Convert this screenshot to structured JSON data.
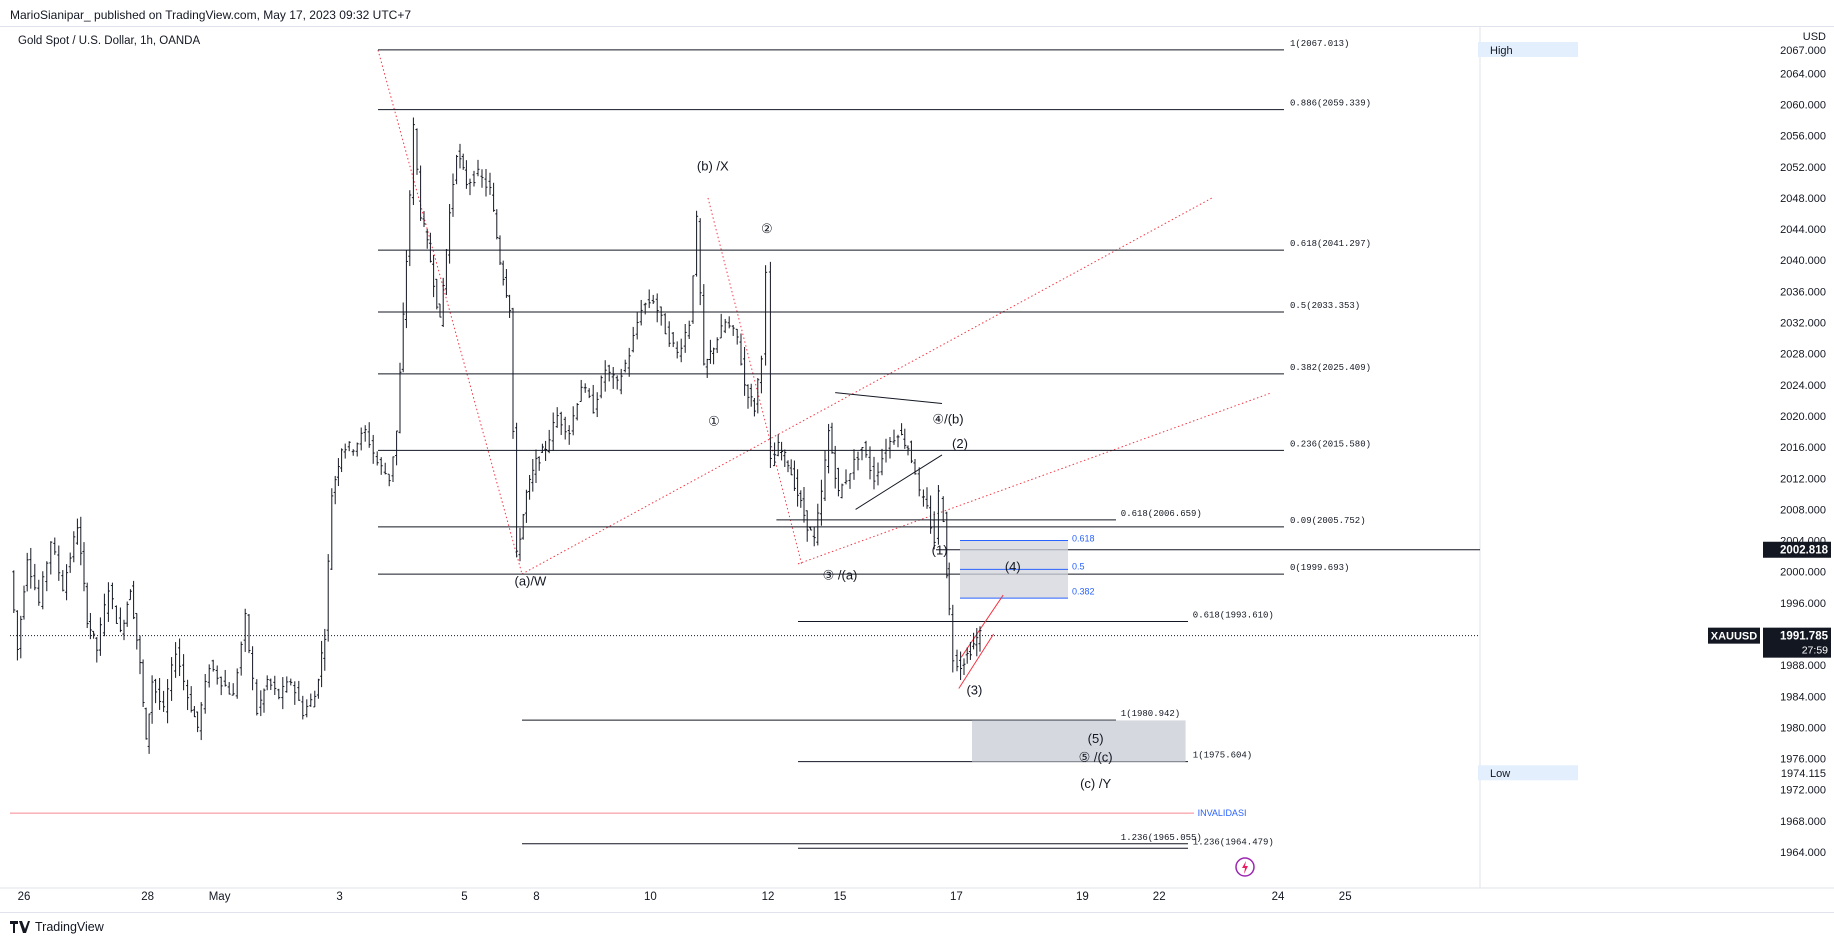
{
  "header": {
    "published": "MarioSianipar_ published on TradingView.com, May 17, 2023 09:32 UTC+7",
    "symbol": "Gold Spot / U.S. Dollar, 1h, OANDA"
  },
  "footer": {
    "brand": "TradingView"
  },
  "colors": {
    "bg": "#ffffff",
    "up": "#131722",
    "fib": "#131722",
    "dotted_red": "#f23645",
    "blue": "#2962ff",
    "zone": "#d1d4dc"
  },
  "chart_data": {
    "type": "candlestick",
    "currency": "USD",
    "ylim": [
      1960.5,
      2069.5
    ],
    "xlim": [
      0,
      1200
    ],
    "y_ticks": [
      1964,
      1968,
      1972,
      1976,
      1980,
      1984,
      1988,
      1992,
      1996,
      2000,
      2004,
      2008,
      2012,
      2016,
      2020,
      2024,
      2028,
      2032,
      2036,
      2040,
      2044,
      2048,
      2052,
      2056,
      2060,
      2064,
      2067
    ],
    "y_tick_labels": [
      "1964.000",
      "1968.000",
      "1972.000",
      "1976.000",
      "1980.000",
      "1984.000",
      "1988.000",
      "1992.000",
      "1996.000",
      "2000.000",
      "2004.000",
      "2008.000",
      "2012.000",
      "2016.000",
      "2020.000",
      "2024.000",
      "2028.000",
      "2032.000",
      "2036.000",
      "2040.000",
      "2044.000",
      "2048.000",
      "2052.000",
      "2056.000",
      "2060.000",
      "2064.000",
      "2067.000"
    ],
    "x_ticks": [
      {
        "t": 10,
        "label": "26"
      },
      {
        "t": 113,
        "label": "28"
      },
      {
        "t": 173,
        "label": "May"
      },
      {
        "t": 273,
        "label": "3"
      },
      {
        "t": 377,
        "label": "5"
      },
      {
        "t": 437,
        "label": "8"
      },
      {
        "t": 532,
        "label": "10"
      },
      {
        "t": 630,
        "label": "12"
      },
      {
        "t": 690,
        "label": "15"
      },
      {
        "t": 787,
        "label": "17"
      },
      {
        "t": 892,
        "label": "19"
      },
      {
        "t": 956,
        "label": "22"
      },
      {
        "t": 1055,
        "label": "24"
      },
      {
        "t": 1111,
        "label": "25"
      }
    ],
    "path": [
      [
        0,
        2000
      ],
      [
        6,
        1990
      ],
      [
        14,
        2002
      ],
      [
        24,
        1996
      ],
      [
        34,
        2004
      ],
      [
        44,
        1998
      ],
      [
        56,
        2006
      ],
      [
        64,
        1994
      ],
      [
        72,
        1990
      ],
      [
        82,
        1998
      ],
      [
        92,
        1992
      ],
      [
        100,
        1998
      ],
      [
        108,
        1988
      ],
      [
        113,
        1978
      ],
      [
        118,
        1986
      ],
      [
        128,
        1982
      ],
      [
        138,
        1990
      ],
      [
        148,
        1984
      ],
      [
        156,
        1980
      ],
      [
        166,
        1988
      ],
      [
        176,
        1986
      ],
      [
        186,
        1984
      ],
      [
        196,
        1994
      ],
      [
        202,
        1986
      ],
      [
        206,
        1982
      ],
      [
        214,
        1986
      ],
      [
        224,
        1984
      ],
      [
        234,
        1986
      ],
      [
        244,
        1982
      ],
      [
        254,
        1984
      ],
      [
        262,
        1992
      ],
      [
        268,
        2010
      ],
      [
        276,
        2016
      ],
      [
        286,
        2016
      ],
      [
        296,
        2018
      ],
      [
        306,
        2014
      ],
      [
        316,
        2012
      ],
      [
        322,
        2018
      ],
      [
        330,
        2040
      ],
      [
        336,
        2057
      ],
      [
        342,
        2046
      ],
      [
        350,
        2040
      ],
      [
        358,
        2032
      ],
      [
        366,
        2046
      ],
      [
        372,
        2054
      ],
      [
        380,
        2050
      ],
      [
        390,
        2051
      ],
      [
        400,
        2049
      ],
      [
        408,
        2040
      ],
      [
        416,
        2034
      ],
      [
        422,
        2002
      ],
      [
        430,
        2010
      ],
      [
        438,
        2014
      ],
      [
        446,
        2016
      ],
      [
        456,
        2020
      ],
      [
        466,
        2018
      ],
      [
        476,
        2024
      ],
      [
        486,
        2021
      ],
      [
        496,
        2026
      ],
      [
        506,
        2024
      ],
      [
        516,
        2028
      ],
      [
        526,
        2034
      ],
      [
        536,
        2035
      ],
      [
        546,
        2031
      ],
      [
        556,
        2028
      ],
      [
        566,
        2032
      ],
      [
        572,
        2045
      ],
      [
        578,
        2026
      ],
      [
        586,
        2029
      ],
      [
        596,
        2032
      ],
      [
        606,
        2030
      ],
      [
        612,
        2024
      ],
      [
        620,
        2021
      ],
      [
        626,
        2028
      ],
      [
        630,
        2038
      ],
      [
        634,
        2014
      ],
      [
        640,
        2016
      ],
      [
        648,
        2014
      ],
      [
        656,
        2010
      ],
      [
        664,
        2006
      ],
      [
        670,
        2004
      ],
      [
        676,
        2010
      ],
      [
        682,
        2018
      ],
      [
        690,
        2010
      ],
      [
        700,
        2013
      ],
      [
        710,
        2016
      ],
      [
        720,
        2012
      ],
      [
        730,
        2016
      ],
      [
        740,
        2018
      ],
      [
        748,
        2016
      ],
      [
        754,
        2013
      ],
      [
        758,
        2010
      ],
      [
        764,
        2008
      ],
      [
        770,
        2004
      ],
      [
        774,
        2010
      ],
      [
        778,
        2007
      ],
      [
        780,
        2000
      ],
      [
        782,
        1995
      ],
      [
        786,
        1989
      ],
      [
        792,
        1988
      ],
      [
        800,
        1990
      ],
      [
        808,
        1992
      ]
    ],
    "fib_levels": [
      {
        "v": 2067.013,
        "label": "1(2067.013)",
        "t0": 305,
        "t1": 1060,
        "lx": 1065,
        "lbl_side": "right"
      },
      {
        "v": 2059.339,
        "label": "0.886(2059.339)",
        "t0": 305,
        "t1": 1060,
        "lx": 1065
      },
      {
        "v": 2041.297,
        "label": "0.618(2041.297)",
        "t0": 305,
        "t1": 1060,
        "lx": 1065
      },
      {
        "v": 2033.353,
        "label": "0.5(2033.353)",
        "t0": 305,
        "t1": 1060,
        "lx": 1065
      },
      {
        "v": 2025.409,
        "label": "0.382(2025.409)",
        "t0": 305,
        "t1": 1060,
        "lx": 1065
      },
      {
        "v": 2015.58,
        "label": "0.236(2015.580)",
        "t0": 305,
        "t1": 1060,
        "lx": 1065
      },
      {
        "v": 2005.752,
        "label": "0.09(2005.752)",
        "t0": 305,
        "t1": 1060,
        "lx": 1065
      },
      {
        "v": 1999.693,
        "label": "0(1999.693)",
        "t0": 305,
        "t1": 1060,
        "lx": 1065
      },
      {
        "v": 2006.659,
        "label": "0.618(2006.659)",
        "t0": 637,
        "t1": 920,
        "lx": 924
      },
      {
        "v": 1993.61,
        "label": "0.618(1993.610)",
        "t0": 655,
        "t1": 980,
        "lx": 984
      },
      {
        "v": 1980.942,
        "label": "1(1980.942)",
        "t0": 425,
        "t1": 920,
        "lx": 924
      },
      {
        "v": 1975.604,
        "label": "1(1975.604)",
        "t0": 655,
        "t1": 980,
        "lx": 984
      },
      {
        "v": 1965.055,
        "label": "1.236(1965.055)",
        "t0": 425,
        "t1": 980,
        "lx": 924
      },
      {
        "v": 1964.479,
        "label": "1.236(1964.479)",
        "t0": 655,
        "t1": 980,
        "lx": 984
      }
    ],
    "wave_labels": [
      {
        "t": 432,
        "v": 1998.2,
        "label": "(a)/W"
      },
      {
        "t": 584,
        "v": 2051.5,
        "label": "(b) /X"
      },
      {
        "t": 629,
        "v": 2043.5,
        "label": "②"
      },
      {
        "t": 585,
        "v": 2018.8,
        "label": "①"
      },
      {
        "t": 690,
        "v": 1999.0,
        "label": "③ /(a)"
      },
      {
        "t": 780,
        "v": 2019.0,
        "label": "④/(b)"
      },
      {
        "t": 790,
        "v": 2015.9,
        "label": "(2)"
      },
      {
        "t": 773,
        "v": 2002.2,
        "label": "(1)"
      },
      {
        "t": 834,
        "v": 2000.1,
        "label": "(4)"
      },
      {
        "t": 802,
        "v": 1984.2,
        "label": "(3)"
      },
      {
        "t": 903,
        "v": 1978.0,
        "label": "(5)"
      },
      {
        "t": 903,
        "v": 1975.6,
        "label": "⑤ /(c)"
      },
      {
        "t": 903,
        "v": 1972.2,
        "label": "(c) /Y"
      }
    ],
    "ratio_labels": [
      {
        "t": 880,
        "v": 2003.9,
        "label": "0.618"
      },
      {
        "t": 880,
        "v": 2000.3,
        "label": "0.5"
      },
      {
        "t": 880,
        "v": 1997.1,
        "label": "0.382"
      }
    ],
    "invalidation": {
      "v": 1969.0,
      "label": "INVALIDASI"
    },
    "price_badges": {
      "current": {
        "v": 1991.785,
        "label": "1991.785",
        "timer": "27:59",
        "symbol": "XAUUSD"
      },
      "level": {
        "v": 2002.818,
        "label": "2002.818"
      },
      "high": {
        "v": 2067.0,
        "label": "2067.000",
        "tag": "High"
      },
      "low": {
        "v": 1974.115,
        "label": "1974.115",
        "tag": "Low"
      }
    }
  }
}
